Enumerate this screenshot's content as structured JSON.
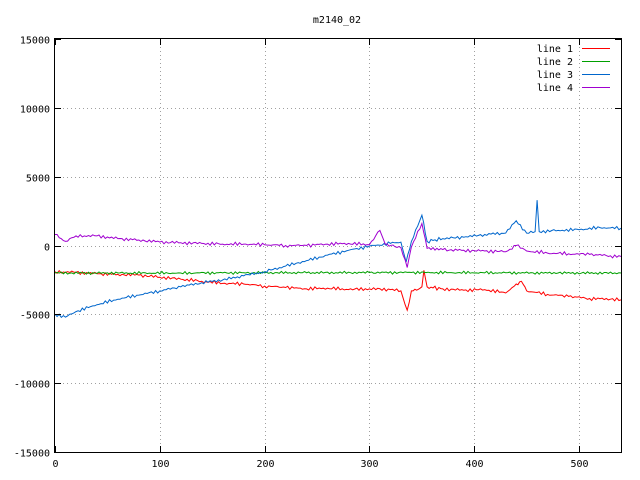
{
  "chart_data": {
    "type": "line",
    "title": "m2140_02",
    "xlabel": "",
    "ylabel": "",
    "xlim": [
      0,
      540
    ],
    "ylim": [
      -15000,
      15000
    ],
    "xticks": [
      0,
      100,
      200,
      300,
      400,
      500
    ],
    "yticks": [
      -15000,
      -10000,
      -5000,
      0,
      5000,
      10000,
      15000
    ],
    "grid": true,
    "legend_position": "top-right",
    "series": [
      {
        "name": "line 1",
        "color": "#ff0000",
        "points": [
          [
            0,
            -1900
          ],
          [
            20,
            -1950
          ],
          [
            40,
            -2050
          ],
          [
            60,
            -2100
          ],
          [
            80,
            -2150
          ],
          [
            100,
            -2300
          ],
          [
            120,
            -2450
          ],
          [
            140,
            -2600
          ],
          [
            160,
            -2750
          ],
          [
            180,
            -2800
          ],
          [
            200,
            -2950
          ],
          [
            220,
            -3050
          ],
          [
            240,
            -3150
          ],
          [
            260,
            -3100
          ],
          [
            280,
            -3200
          ],
          [
            300,
            -3150
          ],
          [
            320,
            -3200
          ],
          [
            330,
            -3300
          ],
          [
            336,
            -4700
          ],
          [
            340,
            -3300
          ],
          [
            345,
            -3250
          ],
          [
            350,
            -3000
          ],
          [
            352,
            -1800
          ],
          [
            355,
            -3000
          ],
          [
            370,
            -3150
          ],
          [
            390,
            -3250
          ],
          [
            410,
            -3200
          ],
          [
            430,
            -3450
          ],
          [
            440,
            -2800
          ],
          [
            445,
            -2600
          ],
          [
            450,
            -3300
          ],
          [
            470,
            -3550
          ],
          [
            490,
            -3700
          ],
          [
            510,
            -3850
          ],
          [
            530,
            -3900
          ],
          [
            540,
            -3950
          ]
        ]
      },
      {
        "name": "line 2",
        "color": "#00a000",
        "points": [
          [
            0,
            -2000
          ],
          [
            60,
            -2000
          ],
          [
            120,
            -2000
          ],
          [
            180,
            -1980
          ],
          [
            240,
            -1980
          ],
          [
            300,
            -1970
          ],
          [
            340,
            -1960
          ],
          [
            360,
            -1970
          ],
          [
            420,
            -1980
          ],
          [
            480,
            -2000
          ],
          [
            540,
            -2000
          ]
        ]
      },
      {
        "name": "line 3",
        "color": "#0066cc",
        "points": [
          [
            0,
            -5000
          ],
          [
            10,
            -5200
          ],
          [
            20,
            -4800
          ],
          [
            40,
            -4300
          ],
          [
            60,
            -3900
          ],
          [
            80,
            -3600
          ],
          [
            100,
            -3300
          ],
          [
            120,
            -3000
          ],
          [
            140,
            -2700
          ],
          [
            160,
            -2500
          ],
          [
            180,
            -2200
          ],
          [
            200,
            -1900
          ],
          [
            220,
            -1500
          ],
          [
            240,
            -1100
          ],
          [
            260,
            -700
          ],
          [
            280,
            -350
          ],
          [
            300,
            -50
          ],
          [
            320,
            150
          ],
          [
            330,
            250
          ],
          [
            335,
            -1200
          ],
          [
            340,
            300
          ],
          [
            350,
            2200
          ],
          [
            355,
            300
          ],
          [
            370,
            500
          ],
          [
            390,
            600
          ],
          [
            410,
            800
          ],
          [
            430,
            900
          ],
          [
            440,
            1800
          ],
          [
            450,
            900
          ],
          [
            458,
            1000
          ],
          [
            460,
            3300
          ],
          [
            462,
            1000
          ],
          [
            480,
            1100
          ],
          [
            500,
            1150
          ],
          [
            520,
            1300
          ],
          [
            540,
            1250
          ]
        ]
      },
      {
        "name": "line 4",
        "color": "#a000d0",
        "points": [
          [
            0,
            800
          ],
          [
            10,
            300
          ],
          [
            20,
            700
          ],
          [
            40,
            700
          ],
          [
            60,
            500
          ],
          [
            80,
            400
          ],
          [
            100,
            250
          ],
          [
            120,
            200
          ],
          [
            140,
            150
          ],
          [
            160,
            100
          ],
          [
            180,
            100
          ],
          [
            200,
            50
          ],
          [
            220,
            0
          ],
          [
            240,
            0
          ],
          [
            260,
            100
          ],
          [
            280,
            150
          ],
          [
            300,
            50
          ],
          [
            310,
            1100
          ],
          [
            315,
            100
          ],
          [
            330,
            -150
          ],
          [
            336,
            -1600
          ],
          [
            340,
            -100
          ],
          [
            350,
            1600
          ],
          [
            355,
            -200
          ],
          [
            370,
            -300
          ],
          [
            390,
            -350
          ],
          [
            410,
            -400
          ],
          [
            430,
            -450
          ],
          [
            440,
            0
          ],
          [
            450,
            -400
          ],
          [
            470,
            -550
          ],
          [
            490,
            -600
          ],
          [
            510,
            -650
          ],
          [
            530,
            -750
          ],
          [
            540,
            -800
          ]
        ]
      }
    ]
  }
}
